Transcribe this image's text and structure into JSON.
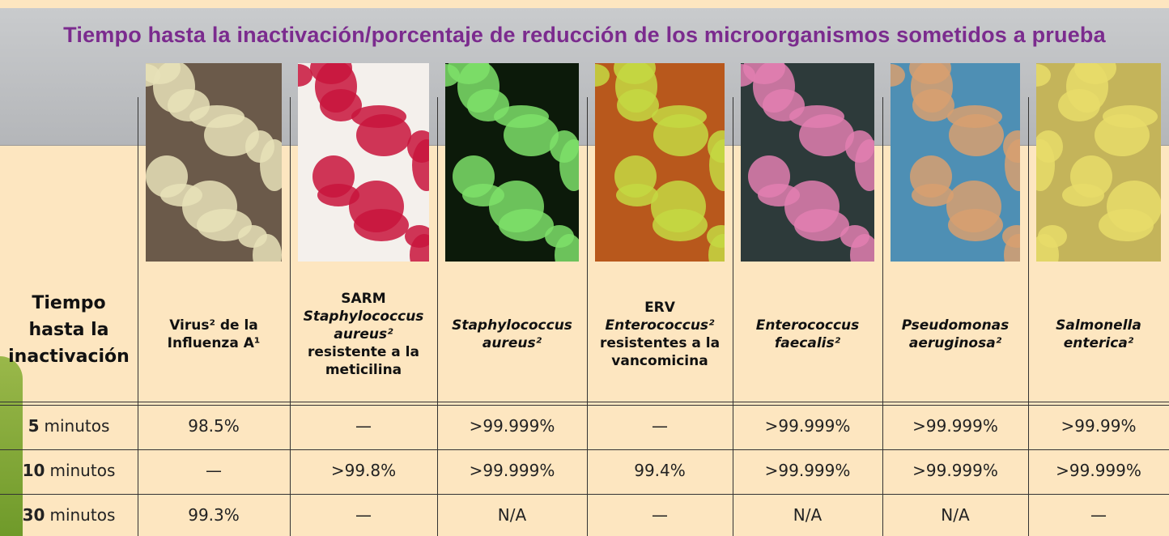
{
  "title": "Tiempo hasta la inactivación/porcentaje de reducción de los microorganismos sometidos a prueba",
  "table": {
    "corner": [
      "Tiempo",
      "hasta la",
      "inactivación"
    ],
    "columns": [
      {
        "name": [
          {
            "text": "Virus² de la"
          },
          {
            "text": "Influenza A¹"
          }
        ]
      },
      {
        "name": [
          {
            "text": "SARM"
          },
          {
            "text": "Staphylococcus",
            "style": "italic"
          },
          {
            "text": "aureus²",
            "style": "italic"
          },
          {
            "text": "resistente a la"
          },
          {
            "text": "meticilina"
          }
        ]
      },
      {
        "name": [
          {
            "text": "Staphylococcus",
            "style": "italic"
          },
          {
            "text": "aureus²",
            "style": "italic"
          }
        ]
      },
      {
        "name": [
          {
            "text": "ERV"
          },
          {
            "text": "Enterococcus²",
            "style": "italic"
          },
          {
            "text": "resistentes a la"
          },
          {
            "text": "vancomicina"
          }
        ]
      },
      {
        "name": [
          {
            "text": "Enterococcus",
            "style": "italic"
          },
          {
            "text": "faecalis²",
            "style": "italic"
          }
        ]
      },
      {
        "name": [
          {
            "text": "Pseudomonas",
            "style": "italic"
          },
          {
            "text": "aeruginosa²",
            "style": "italic"
          }
        ]
      },
      {
        "name": [
          {
            "text": "Salmonella",
            "style": "italic"
          },
          {
            "text": "enterica²",
            "style": "italic"
          }
        ]
      }
    ],
    "rows": [
      {
        "time": "5",
        "unit": "minutos",
        "cells": [
          "98.5%",
          "—",
          ">99.999%",
          "—",
          ">99.999%",
          ">99.999%",
          ">99.99%"
        ]
      },
      {
        "time": "10",
        "unit": "minutos",
        "cells": [
          "—",
          ">99.8%",
          ">99.999%",
          "99.4%",
          ">99.999%",
          ">99.999%",
          ">99.999%"
        ]
      },
      {
        "time": "30",
        "unit": "minutos",
        "cells": [
          "99.3%",
          "—",
          "N/A",
          "—",
          "N/A",
          "N/A",
          "—"
        ]
      }
    ]
  }
}
